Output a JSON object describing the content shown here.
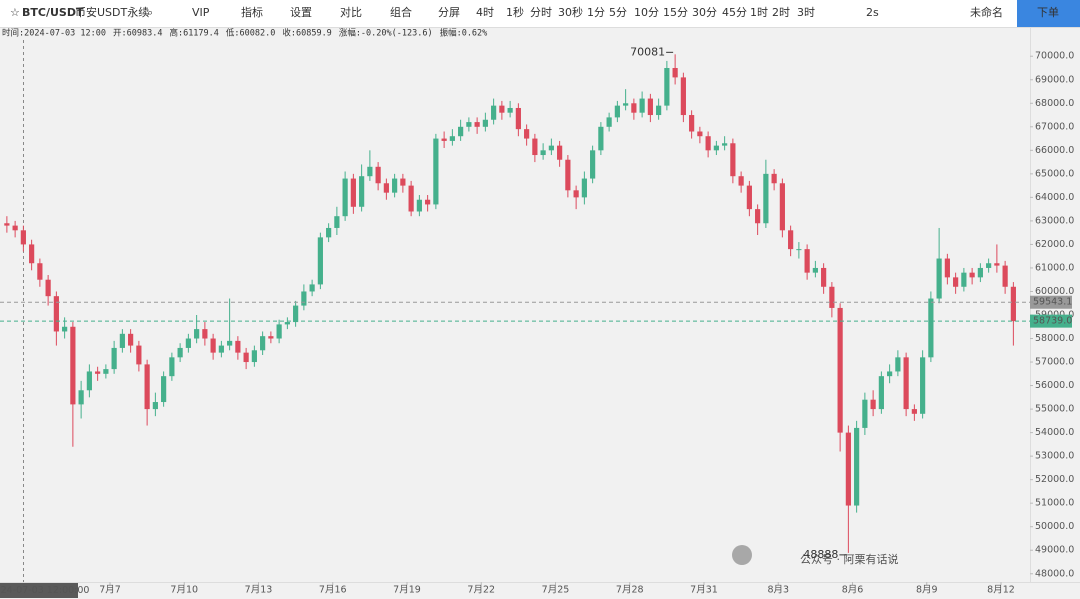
{
  "toolbar": {
    "symbol": "BTC/USDT",
    "market": "币安USDT永续",
    "menu": [
      "VIP",
      "指标",
      "设置",
      "对比",
      "组合",
      "分屏"
    ],
    "intervals": [
      {
        "label": "4时",
        "color": "#3a86e0"
      },
      {
        "label": "1秒",
        "color": "#e0883a"
      },
      {
        "label": "分时",
        "color": "#333333"
      },
      {
        "label": "30秒",
        "color": "#e0883a"
      },
      {
        "label": "1分",
        "color": "#333333"
      },
      {
        "label": "5分",
        "color": "#333333"
      },
      {
        "label": "10分",
        "color": "#333333"
      },
      {
        "label": "15分",
        "color": "#333333"
      },
      {
        "label": "30分",
        "color": "#333333"
      },
      {
        "label": "45分",
        "color": "#e0883a"
      },
      {
        "label": "1时",
        "color": "#333333"
      },
      {
        "label": "2时",
        "color": "#333333"
      },
      {
        "label": "3时",
        "color": "#333333"
      }
    ],
    "refresh": "2s",
    "layout_name": "未命名",
    "order_button": "下单"
  },
  "info": [
    "时间:2024-07-03 12:00",
    "开:60983.4",
    "高:61179.4",
    "低:60082.0",
    "收:60859.9",
    "涨幅:-0.20%(-123.6)",
    "振幅:0.62%"
  ],
  "watermark": "公众号 · 阿栗有话说",
  "chart_data": {
    "type": "candlestick",
    "up_color": "#45b08c",
    "down_color": "#dc4a5c",
    "grid": false,
    "crosshair_time": "2024-07-03 12:00:00",
    "ylim": [
      47650,
      71200
    ],
    "yticks": [
      {
        "value": 48000,
        "label": "48000.0"
      },
      {
        "value": 49000,
        "label": "49000.0"
      },
      {
        "value": 50000,
        "label": "50000.0"
      },
      {
        "value": 51000,
        "label": "51000.0"
      },
      {
        "value": 52000,
        "label": "52000.0"
      },
      {
        "value": 53000,
        "label": "53000.0"
      },
      {
        "value": 54000,
        "label": "54000.0"
      },
      {
        "value": 55000,
        "label": "55000.0"
      },
      {
        "value": 56000,
        "label": "56000.0"
      },
      {
        "value": 57000,
        "label": "57000.0"
      },
      {
        "value": 58000,
        "label": "58000.0"
      },
      {
        "value": 59000,
        "label": "59000.0"
      },
      {
        "value": 60000,
        "label": "60000.0"
      },
      {
        "value": 61000,
        "label": "61000.0"
      },
      {
        "value": 62000,
        "label": "62000.0"
      },
      {
        "value": 63000,
        "label": "63000.0"
      },
      {
        "value": 64000,
        "label": "64000.0"
      },
      {
        "value": 65000,
        "label": "65000.0"
      },
      {
        "value": 66000,
        "label": "66000.0"
      },
      {
        "value": 67000,
        "label": "67000.0"
      },
      {
        "value": 68000,
        "label": "68000.0"
      },
      {
        "value": 69000,
        "label": "69000.0"
      },
      {
        "value": 70000,
        "label": "70000.0"
      }
    ],
    "price_lines": [
      {
        "value": 59543.1,
        "label": "59543.1",
        "color": "#999999"
      },
      {
        "value": 58739,
        "label": "58739.0",
        "color": "#45b08c"
      }
    ],
    "categories": [
      null,
      null,
      null,
      null,
      null,
      null,
      null,
      null,
      null,
      null,
      null,
      null,
      null,
      "7月7",
      null,
      null,
      null,
      null,
      null,
      null,
      null,
      null,
      "7月10",
      null,
      null,
      null,
      null,
      null,
      null,
      null,
      null,
      "7月13",
      null,
      null,
      null,
      null,
      null,
      null,
      null,
      null,
      "7月16",
      null,
      null,
      null,
      null,
      null,
      null,
      null,
      null,
      "7月19",
      null,
      null,
      null,
      null,
      null,
      null,
      null,
      null,
      "7月22",
      null,
      null,
      null,
      null,
      null,
      null,
      null,
      null,
      "7月25",
      null,
      null,
      null,
      null,
      null,
      null,
      null,
      null,
      "7月28",
      null,
      null,
      null,
      null,
      null,
      null,
      null,
      null,
      "7月31",
      null,
      null,
      null,
      null,
      null,
      null,
      null,
      null,
      "8月3",
      null,
      null,
      null,
      null,
      null,
      null,
      null,
      null,
      "8月6",
      null,
      null,
      null,
      null,
      null,
      null,
      null,
      null,
      "8月9",
      null,
      null,
      null,
      null,
      null,
      null,
      null,
      null,
      "8月12",
      null
    ],
    "open": [
      62900,
      62800,
      62600,
      62000,
      61200,
      60500,
      59800,
      58300,
      58500,
      55200,
      55800,
      56600,
      56500,
      56700,
      57600,
      58200,
      57700,
      56900,
      55000,
      55300,
      56400,
      57200,
      57600,
      58000,
      58400,
      58000,
      57400,
      57700,
      57900,
      57400,
      57000,
      57500,
      58100,
      58000,
      58600,
      58700,
      59400,
      60000,
      60300,
      62300,
      62700,
      63200,
      64800,
      63600,
      64900,
      65300,
      64600,
      64200,
      64800,
      64500,
      63400,
      63900,
      63700,
      66500,
      66400,
      66600,
      67000,
      67200,
      67000,
      67300,
      67900,
      67600,
      67800,
      66900,
      66500,
      65800,
      66000,
      66200,
      65600,
      64300,
      64000,
      64800,
      66000,
      67000,
      67400,
      67900,
      68000,
      67600,
      68200,
      67500,
      67900,
      69500,
      69100,
      67500,
      66800,
      66600,
      66000,
      66200,
      66300,
      64900,
      64500,
      63500,
      62900,
      65000,
      64600,
      62600,
      61800,
      61800,
      60800,
      61000,
      60200,
      59300,
      54000,
      50900,
      54200,
      55400,
      55000,
      56400,
      56600,
      57200,
      55000,
      54800,
      57200,
      59700,
      61400,
      60600,
      60200,
      60800,
      60600,
      61000,
      61200,
      61100,
      60200
    ],
    "high": [
      63200,
      63000,
      62800,
      62200,
      61400,
      60700,
      60000,
      58900,
      58700,
      56200,
      56900,
      56800,
      56900,
      57900,
      58400,
      58400,
      57900,
      57100,
      55700,
      56600,
      57400,
      57800,
      58200,
      59000,
      58700,
      58200,
      57900,
      59700,
      58100,
      57600,
      57700,
      58300,
      58300,
      58800,
      58900,
      59600,
      60300,
      60500,
      62500,
      62900,
      63600,
      65100,
      65000,
      65400,
      66000,
      65500,
      64800,
      65000,
      65000,
      64700,
      64100,
      64100,
      66700,
      66800,
      66900,
      67300,
      67400,
      67400,
      67600,
      68200,
      68100,
      68100,
      68000,
      67100,
      66700,
      66300,
      66500,
      66400,
      65800,
      64500,
      65100,
      66200,
      67200,
      67600,
      68100,
      68600,
      68200,
      68500,
      68400,
      68200,
      69800,
      70081,
      69300,
      67700,
      67000,
      66800,
      66400,
      66600,
      66500,
      65100,
      64700,
      63700,
      65600,
      65200,
      64800,
      62800,
      62100,
      62000,
      61300,
      61200,
      60400,
      59500,
      54300,
      54500,
      55700,
      55800,
      56600,
      56900,
      57500,
      57400,
      55200,
      57500,
      60000,
      62700,
      61600,
      60800,
      61000,
      61000,
      61200,
      61400,
      62000,
      61300,
      60400
    ],
    "low": [
      62500,
      62300,
      61700,
      60900,
      60200,
      59400,
      57700,
      58000,
      53400,
      54600,
      55500,
      56200,
      56300,
      56500,
      57400,
      57400,
      56600,
      54300,
      54700,
      55100,
      56200,
      57000,
      57400,
      57800,
      57700,
      57100,
      57200,
      57500,
      57100,
      56700,
      56800,
      57300,
      57800,
      57800,
      58400,
      58500,
      59200,
      59800,
      60100,
      62100,
      62400,
      63000,
      63300,
      63400,
      64700,
      64300,
      63900,
      64000,
      64200,
      63200,
      63200,
      63400,
      63500,
      66100,
      66200,
      66400,
      66800,
      66700,
      66800,
      67100,
      67300,
      67400,
      66600,
      66200,
      65500,
      65600,
      65800,
      65300,
      64000,
      63500,
      63700,
      64600,
      65800,
      66800,
      67200,
      67700,
      67300,
      67400,
      67200,
      67300,
      67700,
      68800,
      67200,
      66500,
      66300,
      65700,
      65800,
      66000,
      64600,
      64200,
      63200,
      62400,
      62700,
      64300,
      62300,
      61500,
      61400,
      60500,
      60600,
      59900,
      58900,
      53200,
      48888,
      50600,
      53900,
      54700,
      54800,
      56100,
      56400,
      54700,
      54500,
      54600,
      57000,
      59500,
      60300,
      59900,
      60000,
      60300,
      60400,
      60800,
      60800,
      59900,
      57700
    ],
    "close": [
      62800,
      62600,
      62000,
      61200,
      60500,
      59800,
      58300,
      58500,
      55200,
      55800,
      56600,
      56500,
      56700,
      57600,
      58200,
      57700,
      56900,
      55000,
      55300,
      56400,
      57200,
      57600,
      58000,
      58400,
      58000,
      57400,
      57700,
      57900,
      57400,
      57000,
      57500,
      58100,
      58000,
      58600,
      58700,
      59400,
      60000,
      60300,
      62300,
      62700,
      63200,
      64800,
      63600,
      64900,
      65300,
      64600,
      64200,
      64800,
      64500,
      63400,
      63900,
      63700,
      66500,
      66400,
      66600,
      67000,
      67200,
      67000,
      67300,
      67900,
      67600,
      67800,
      66900,
      66500,
      65800,
      66000,
      66200,
      65600,
      64300,
      64000,
      64800,
      66000,
      67000,
      67400,
      67900,
      68000,
      67600,
      68200,
      67500,
      67900,
      69500,
      69100,
      67500,
      66800,
      66600,
      66000,
      66200,
      66300,
      64900,
      64500,
      63500,
      62900,
      65000,
      64600,
      62600,
      61800,
      61800,
      60800,
      61000,
      60200,
      59300,
      54000,
      50900,
      54200,
      55400,
      55000,
      56400,
      56600,
      57200,
      55000,
      54800,
      57200,
      59700,
      61400,
      60600,
      60200,
      60800,
      60600,
      61000,
      61200,
      61100,
      60200,
      58739
    ]
  }
}
